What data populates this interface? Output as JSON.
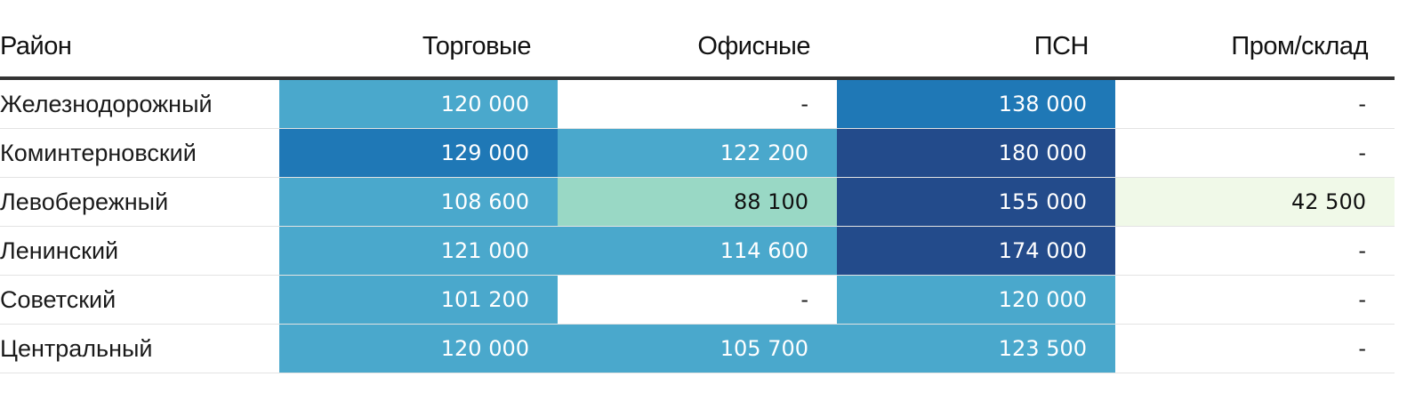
{
  "chart_data": {
    "type": "table",
    "columns": [
      "Район",
      "Торговые",
      "Офисные",
      "ПСН",
      "Пром/склад"
    ],
    "rows": [
      {
        "name": "Железнодорожный",
        "values": [
          "120 000",
          "-",
          "138 000",
          "-"
        ],
        "numbers": [
          120000,
          null,
          138000,
          null
        ]
      },
      {
        "name": "Коминтерновский",
        "values": [
          "129 000",
          "122 200",
          "180 000",
          "-"
        ],
        "numbers": [
          129000,
          122200,
          180000,
          null
        ]
      },
      {
        "name": "Левобережный",
        "values": [
          "108 600",
          "88 100",
          "155 000",
          "42 500"
        ],
        "numbers": [
          108600,
          88100,
          155000,
          42500
        ]
      },
      {
        "name": "Ленинский",
        "values": [
          "121 000",
          "114 600",
          "174 000",
          "-"
        ],
        "numbers": [
          121000,
          114600,
          174000,
          null
        ]
      },
      {
        "name": "Советский",
        "values": [
          "101 200",
          "-",
          "120 000",
          "-"
        ],
        "numbers": [
          101200,
          null,
          120000,
          null
        ]
      },
      {
        "name": "Центральный",
        "values": [
          "120 000",
          "105 700",
          "123 500",
          "-"
        ],
        "numbers": [
          120000,
          105700,
          123500,
          null
        ]
      }
    ],
    "color_scale": {
      "empty": "#ffffff",
      "low": "#f0f9e8",
      "mid_low": "#99d8c5",
      "mid": "#4aa8cc",
      "high": "#1f78b6",
      "highest": "#234b8b"
    }
  }
}
